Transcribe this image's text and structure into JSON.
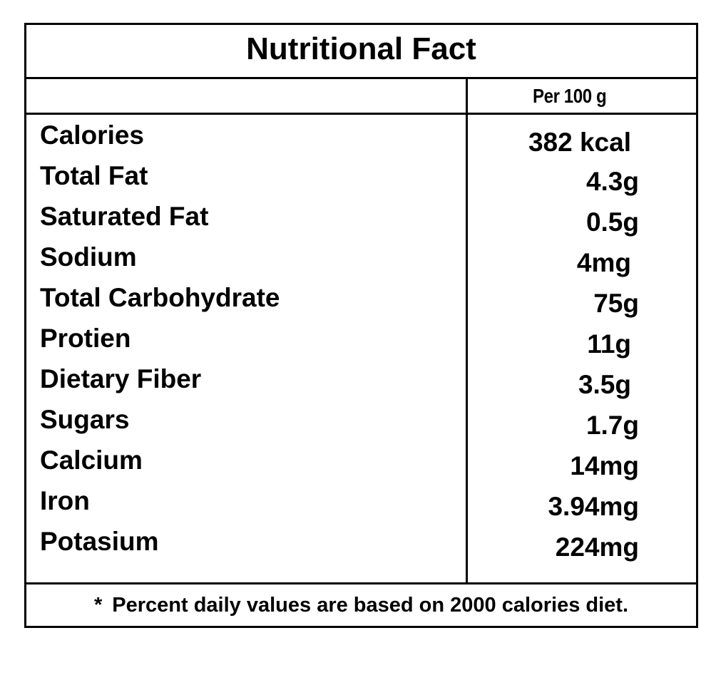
{
  "title": "Nutritional Fact",
  "column_header": "Per 100 g",
  "nutrients": [
    {
      "name": "Calories",
      "value": "382 kcal"
    },
    {
      "name": "Total Fat",
      "value": "4.3g"
    },
    {
      "name": "Saturated Fat",
      "value": "0.5g"
    },
    {
      "name": "Sodium",
      "value": "4mg"
    },
    {
      "name": "Total Carbohydrate",
      "value": "75g"
    },
    {
      "name": "Protien",
      "value": "11g"
    },
    {
      "name": "Dietary Fiber",
      "value": "3.5g"
    },
    {
      "name": "Sugars",
      "value": "1.7g"
    },
    {
      "name": "Calcium",
      "value": "14mg"
    },
    {
      "name": "Iron",
      "value": "3.94mg"
    },
    {
      "name": "Potasium",
      "value": "224mg"
    }
  ],
  "footnote": {
    "marker": "*",
    "text": "Percent daily values are based on 2000 calories diet."
  }
}
